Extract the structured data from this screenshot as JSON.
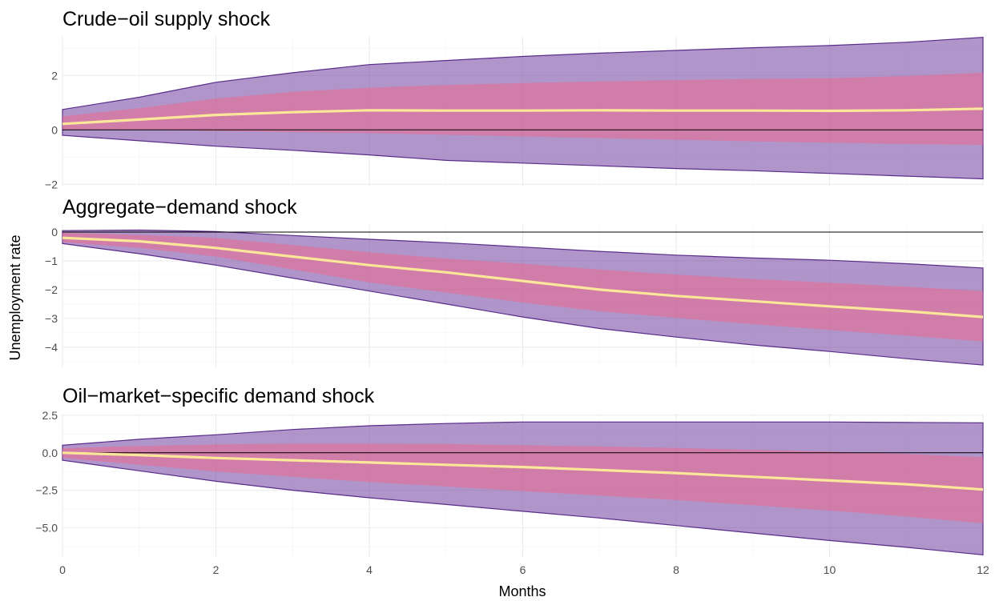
{
  "chart_data": {
    "type": "area",
    "xlabel": "Months",
    "ylabel": "Unemployment rate",
    "xlim": [
      0,
      12
    ],
    "x_ticks": [
      0,
      2,
      4,
      6,
      8,
      10,
      12
    ],
    "grid": true,
    "legend": "none",
    "colors": {
      "outer_band_fill": "#7b4fa6",
      "outer_band_line": "#5a2c8a",
      "inner_band_fill": "#ec6a8e",
      "median_line": "#fbe79a",
      "zero_line": "#000000",
      "grid": "#ebebeb"
    },
    "panels": [
      {
        "title": "Crude−oil supply shock",
        "ylim": [
          -2.05,
          3.45
        ],
        "y_ticks": [
          -2,
          0,
          2
        ],
        "y_tick_labels": [
          "−2",
          "0",
          "2"
        ],
        "x": [
          0,
          1,
          2,
          3,
          4,
          5,
          6,
          7,
          8,
          9,
          10,
          11,
          12
        ],
        "median": [
          0.22,
          0.38,
          0.55,
          0.65,
          0.72,
          0.71,
          0.71,
          0.72,
          0.71,
          0.71,
          0.7,
          0.72,
          0.78
        ],
        "inner_lower": [
          0.02,
          0.0,
          -0.04,
          -0.08,
          -0.12,
          -0.18,
          -0.24,
          -0.3,
          -0.36,
          -0.42,
          -0.47,
          -0.52,
          -0.55
        ],
        "inner_upper": [
          0.5,
          0.8,
          1.15,
          1.4,
          1.55,
          1.65,
          1.72,
          1.78,
          1.83,
          1.87,
          1.9,
          1.98,
          2.1
        ],
        "outer_lower": [
          -0.2,
          -0.4,
          -0.6,
          -0.75,
          -0.92,
          -1.12,
          -1.22,
          -1.32,
          -1.42,
          -1.5,
          -1.6,
          -1.7,
          -1.8
        ],
        "outer_upper": [
          0.75,
          1.2,
          1.75,
          2.1,
          2.4,
          2.55,
          2.7,
          2.82,
          2.92,
          3.02,
          3.1,
          3.22,
          3.4
        ]
      },
      {
        "title": "Aggregate−demand shock",
        "ylim": [
          -4.7,
          0.25
        ],
        "y_ticks": [
          -4,
          -3,
          -2,
          -1,
          0
        ],
        "y_tick_labels": [
          "−4",
          "−3",
          "−2",
          "−1",
          "0"
        ],
        "x": [
          0,
          1,
          2,
          3,
          4,
          5,
          6,
          7,
          8,
          9,
          10,
          11,
          12
        ],
        "median": [
          -0.2,
          -0.32,
          -0.55,
          -0.85,
          -1.15,
          -1.4,
          -1.7,
          -2.0,
          -2.22,
          -2.4,
          -2.58,
          -2.75,
          -2.95
        ],
        "inner_lower": [
          -0.35,
          -0.55,
          -0.85,
          -1.3,
          -1.75,
          -2.1,
          -2.45,
          -2.75,
          -2.98,
          -3.2,
          -3.4,
          -3.6,
          -3.8
        ],
        "inner_upper": [
          -0.02,
          -0.1,
          -0.2,
          -0.45,
          -0.7,
          -0.92,
          -1.1,
          -1.3,
          -1.48,
          -1.63,
          -1.76,
          -1.9,
          -2.05
        ],
        "outer_lower": [
          -0.4,
          -0.75,
          -1.15,
          -1.6,
          -2.05,
          -2.5,
          -2.95,
          -3.35,
          -3.65,
          -3.92,
          -4.15,
          -4.4,
          -4.62
        ],
        "outer_upper": [
          0.05,
          0.07,
          0.02,
          -0.12,
          -0.25,
          -0.37,
          -0.52,
          -0.67,
          -0.8,
          -0.9,
          -0.98,
          -1.1,
          -1.25
        ]
      },
      {
        "title": "Oil−market−specific demand shock",
        "ylim": [
          -7.0,
          2.6
        ],
        "y_ticks": [
          -5.0,
          -2.5,
          0.0,
          2.5
        ],
        "y_tick_labels": [
          "−5.0",
          "−2.5",
          "0.0",
          "2.5"
        ],
        "x": [
          0,
          1,
          2,
          3,
          4,
          5,
          6,
          7,
          8,
          9,
          10,
          11,
          12
        ],
        "median": [
          0.0,
          -0.15,
          -0.35,
          -0.5,
          -0.65,
          -0.8,
          -0.95,
          -1.15,
          -1.35,
          -1.6,
          -1.85,
          -2.1,
          -2.45
        ],
        "inner_lower": [
          -0.35,
          -0.8,
          -1.25,
          -1.6,
          -1.95,
          -2.25,
          -2.55,
          -2.85,
          -3.15,
          -3.5,
          -3.85,
          -4.25,
          -4.7
        ],
        "inner_upper": [
          0.3,
          0.45,
          0.55,
          0.6,
          0.6,
          0.58,
          0.5,
          0.42,
          0.32,
          0.2,
          0.08,
          -0.08,
          -0.3
        ],
        "outer_lower": [
          -0.5,
          -1.2,
          -1.9,
          -2.5,
          -3.0,
          -3.45,
          -3.9,
          -4.35,
          -4.85,
          -5.35,
          -5.85,
          -6.3,
          -6.8
        ],
        "outer_upper": [
          0.5,
          0.9,
          1.2,
          1.55,
          1.8,
          1.95,
          2.05,
          2.05,
          2.05,
          2.05,
          2.05,
          2.02,
          2.0
        ]
      }
    ]
  }
}
